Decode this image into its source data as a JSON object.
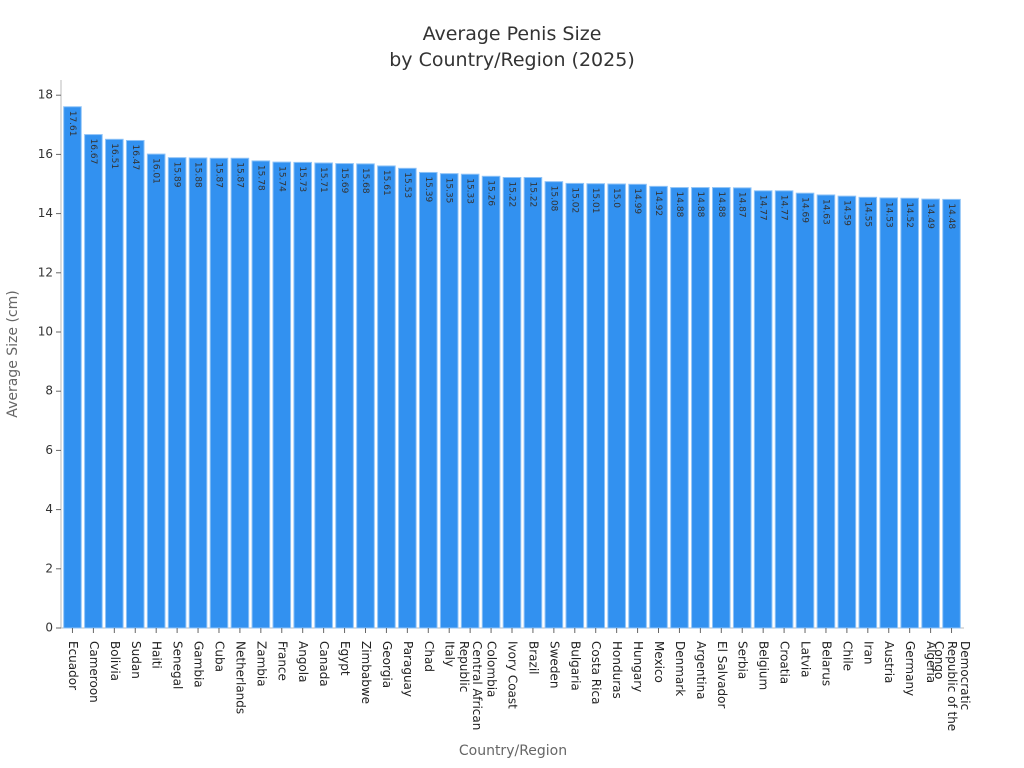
{
  "chart_data": {
    "type": "bar",
    "title": "Average Penis Size\nby Country/Region (2025)",
    "x_label": "Country/Region",
    "y_label": "Average Size (cm)",
    "categories": [
      "Ecuador",
      "Cameroon",
      "Bolivia",
      "Sudan",
      "Haiti",
      "Senegal",
      "Gambia",
      "Cuba",
      "Netherlands",
      "Zambia",
      "France",
      "Angola",
      "Canada",
      "Egypt",
      "Zimbabwe",
      "Georgia",
      "Paraguay",
      "Chad",
      "Italy",
      "Central African Republic",
      "Colombia",
      "Ivory Coast",
      "Brazil",
      "Sweden",
      "Bulgaria",
      "Costa Rica",
      "Honduras",
      "Hungary",
      "Mexico",
      "Denmark",
      "Argentina",
      "El Salvador",
      "Serbia",
      "Belgium",
      "Croatia",
      "Latvia",
      "Belarus",
      "Chile",
      "Iran",
      "Austria",
      "Germany",
      "Algeria",
      "Democratic Republic of the Congo"
    ],
    "values": [
      17.61,
      16.67,
      16.51,
      16.47,
      16.01,
      15.89,
      15.88,
      15.87,
      15.87,
      15.78,
      15.74,
      15.73,
      15.71,
      15.69,
      15.68,
      15.61,
      15.53,
      15.39,
      15.35,
      15.33,
      15.26,
      15.22,
      15.22,
      15.08,
      15.02,
      15.01,
      15.0,
      14.99,
      14.92,
      14.88,
      14.88,
      14.88,
      14.87,
      14.77,
      14.77,
      14.69,
      14.63,
      14.59,
      14.55,
      14.53,
      14.52,
      14.49,
      14.48
    ],
    "value_labels": [
      "17.61",
      "16.67",
      "16.51",
      "16.47",
      "16.01",
      "15.89",
      "15.88",
      "15.87",
      "15.87",
      "15.78",
      "15.74",
      "15.73",
      "15.71",
      "15.69",
      "15.68",
      "15.61",
      "15.53",
      "15.39",
      "15.35",
      "15.33",
      "15.26",
      "15.22",
      "15.22",
      "15.08",
      "15.02",
      "15.01",
      "15.0",
      "14.99",
      "14.92",
      "14.88",
      "14.88",
      "14.88",
      "14.87",
      "14.77",
      "14.77",
      "14.69",
      "14.63",
      "14.59",
      "14.55",
      "14.53",
      "14.52",
      "14.49",
      "14.48"
    ],
    "color": "#3291f0",
    "ylim": [
      0,
      18.5
    ],
    "yticks": [
      0,
      2,
      4,
      6,
      8,
      10,
      12,
      14,
      16,
      18
    ]
  }
}
